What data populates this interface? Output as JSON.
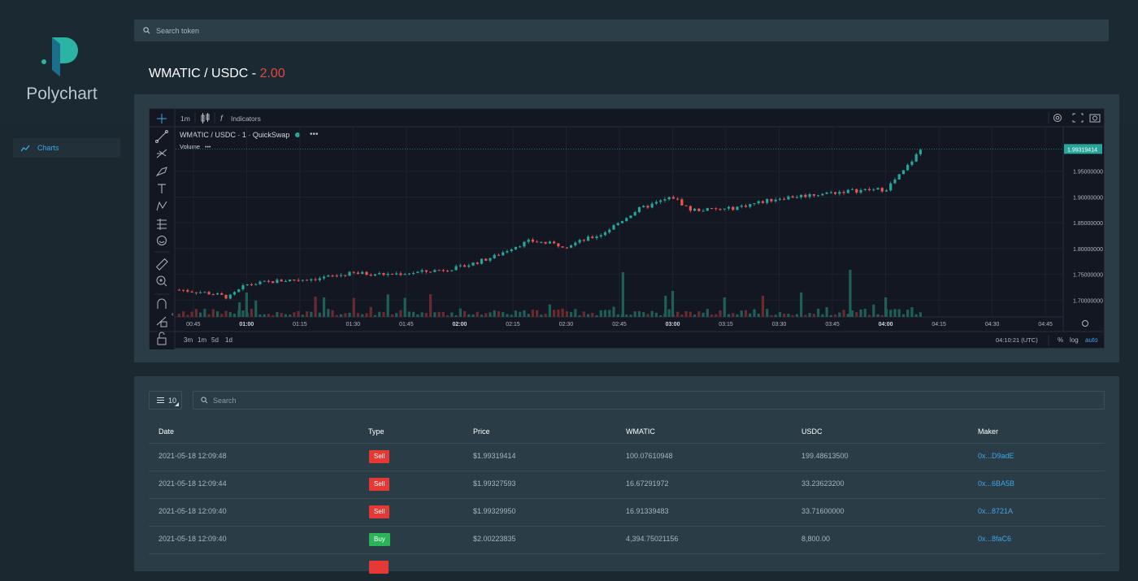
{
  "app": {
    "brand": "Polychart"
  },
  "sidebar": {
    "items": [
      {
        "label": "Charts",
        "icon": "line-chart-icon"
      }
    ]
  },
  "search": {
    "placeholder": "Search token"
  },
  "pair": {
    "name": "WMATIC / USDC - ",
    "value": "2.00"
  },
  "chart": {
    "toolbar": {
      "interval": "1m",
      "indicators": "Indicators"
    },
    "legend": {
      "symbol": "WMATIC / USDC · 1 · QuickSwap",
      "volume": "Volume"
    },
    "price_labels": [
      "1.99319414",
      "1.95000000",
      "1.90000000",
      "1.85000000",
      "1.80000000",
      "1.75000000",
      "1.70000000"
    ],
    "current_price": "1.99319414",
    "time_labels": [
      "00:45",
      "01:00",
      "01:15",
      "01:30",
      "01:45",
      "02:00",
      "02:15",
      "02:30",
      "02:45",
      "03:00",
      "03:15",
      "03:30",
      "03:45",
      "04:00",
      "04:15",
      "04:30",
      "04:45"
    ],
    "bold_times": [
      "01:00",
      "02:00",
      "03:00",
      "04:00"
    ],
    "ranges": [
      "3m",
      "1m",
      "5d",
      "1d"
    ],
    "clock": "04:10:21 (UTC)",
    "scale_options": [
      "%",
      "log",
      "auto"
    ],
    "colors": {
      "up": "#26a69a",
      "down": "#ef5350",
      "accent": "#3ea6e6",
      "sell": "#e53935",
      "buy": "#2bb357"
    }
  },
  "chart_data": {
    "type": "candlestick",
    "title": "WMATIC / USDC · 1 · QuickSwap",
    "ylim": [
      1.68,
      2.0
    ],
    "x_range": [
      "00:40",
      "04:50"
    ],
    "close_path": [
      [
        "00:41",
        1.72
      ],
      [
        "00:50",
        1.713
      ],
      [
        "00:55",
        1.705
      ],
      [
        "01:00",
        1.73
      ],
      [
        "01:10",
        1.738
      ],
      [
        "01:20",
        1.742
      ],
      [
        "01:30",
        1.752
      ],
      [
        "01:40",
        1.75
      ],
      [
        "01:50",
        1.755
      ],
      [
        "02:00",
        1.763
      ],
      [
        "02:10",
        1.785
      ],
      [
        "02:15",
        1.803
      ],
      [
        "02:20",
        1.815
      ],
      [
        "02:30",
        1.805
      ],
      [
        "02:40",
        1.828
      ],
      [
        "02:50",
        1.875
      ],
      [
        "03:00",
        1.9
      ],
      [
        "03:05",
        1.875
      ],
      [
        "03:15",
        1.876
      ],
      [
        "03:20",
        1.883
      ],
      [
        "03:30",
        1.898
      ],
      [
        "03:40",
        1.905
      ],
      [
        "03:50",
        1.912
      ],
      [
        "04:00",
        1.915
      ],
      [
        "04:05",
        1.95
      ],
      [
        "04:10",
        1.993
      ]
    ]
  },
  "table": {
    "page_size": "10",
    "search_placeholder": "Search",
    "columns": [
      "Date",
      "Type",
      "Price",
      "WMATIC",
      "USDC",
      "Maker"
    ],
    "rows": [
      {
        "date": "2021-05-18 12:09:48",
        "type": "Sell",
        "price": "$1.99319414",
        "wmatic": "100.07610948",
        "usdc": "199.48613500",
        "maker": "0x...D9adE"
      },
      {
        "date": "2021-05-18 12:09:44",
        "type": "Sell",
        "price": "$1.99327593",
        "wmatic": "16.67291972",
        "usdc": "33.23623200",
        "maker": "0x...6BA5B"
      },
      {
        "date": "2021-05-18 12:09:40",
        "type": "Sell",
        "price": "$1.99329950",
        "wmatic": "16.91339483",
        "usdc": "33.71600000",
        "maker": "0x...8721A"
      },
      {
        "date": "2021-05-18 12:09:40",
        "type": "Buy",
        "price": "$2.00223835",
        "wmatic": "4,394.75021156",
        "usdc": "8,800.00",
        "maker": "0x...8faC6"
      }
    ]
  }
}
